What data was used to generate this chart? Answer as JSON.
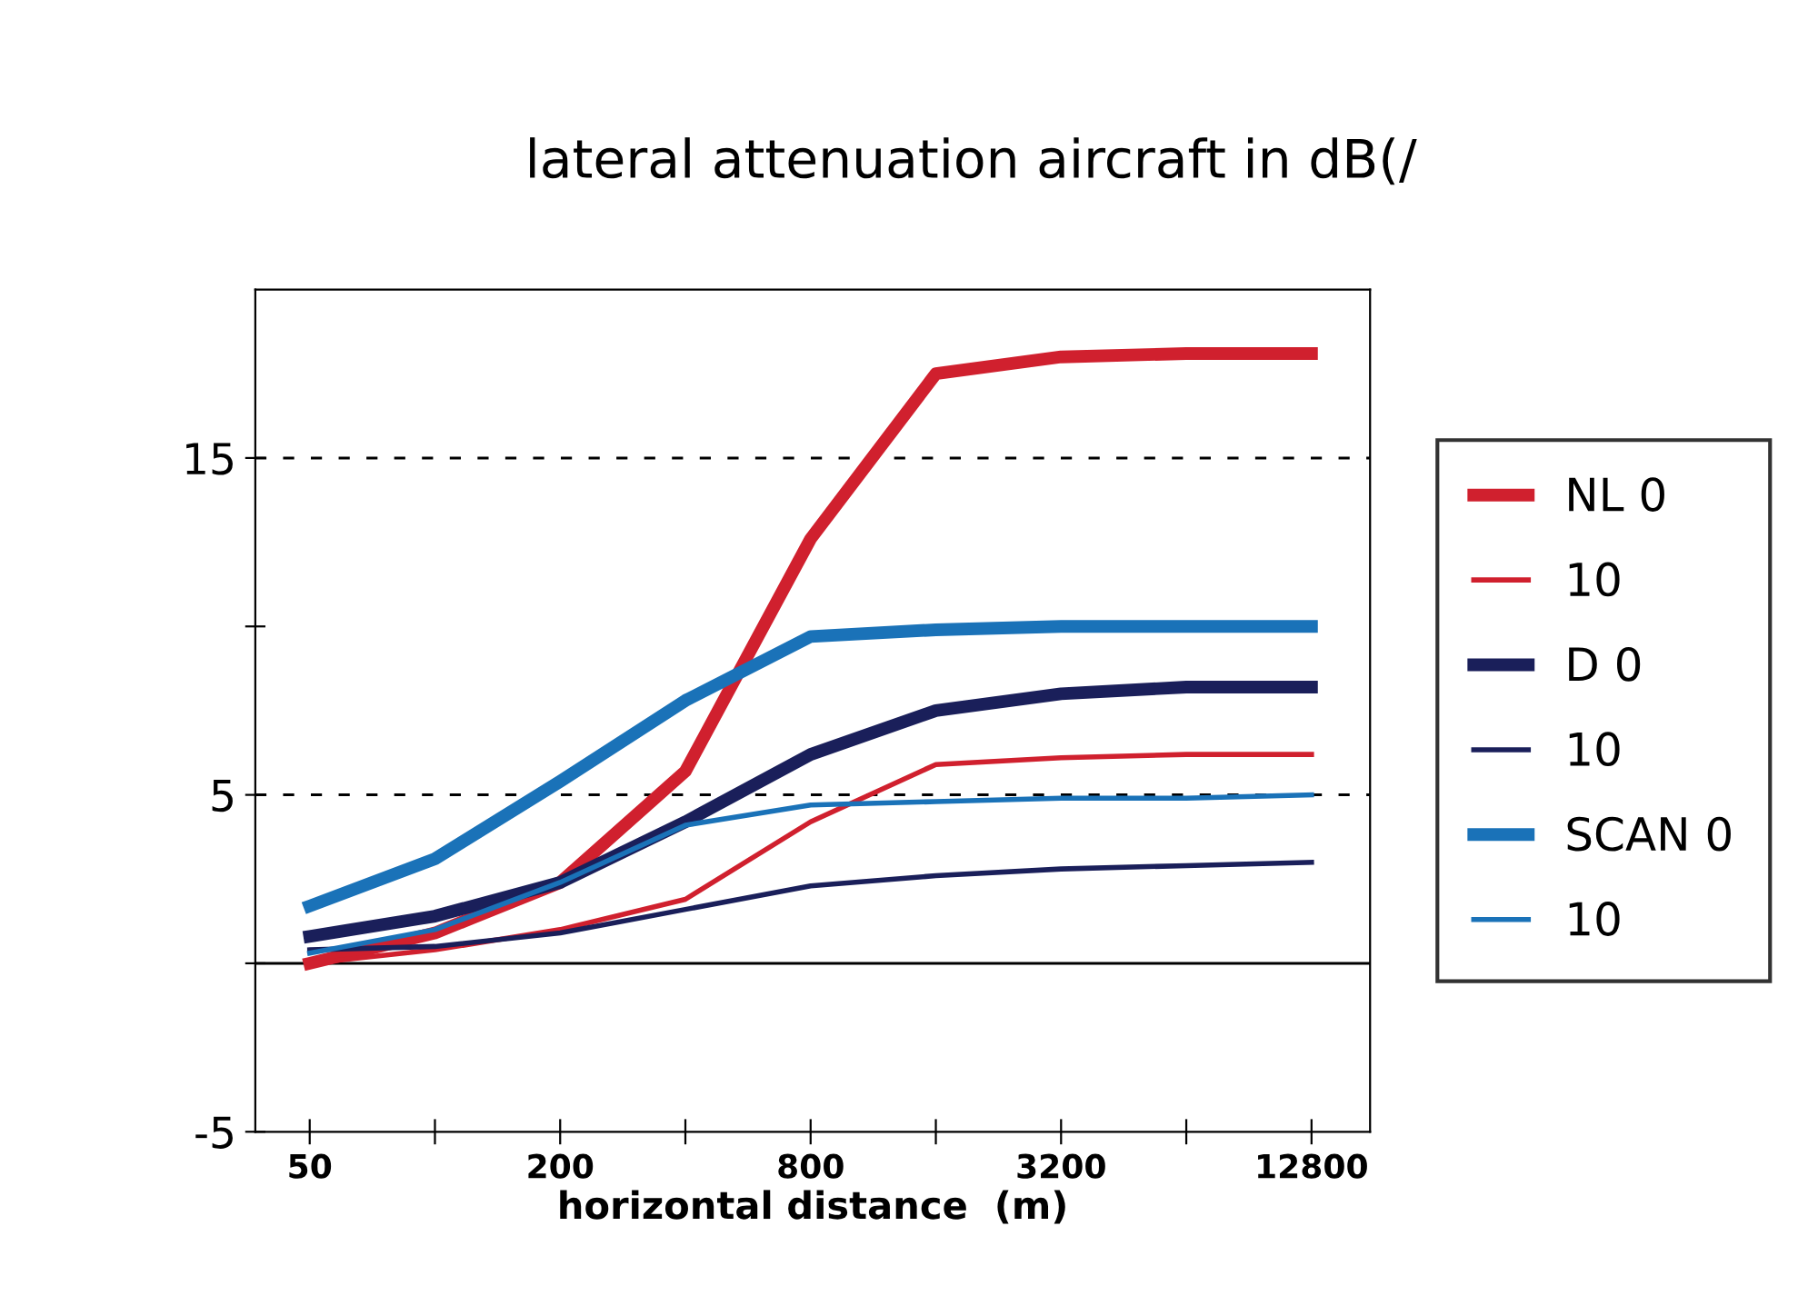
{
  "chart_data": {
    "type": "line",
    "title": "lateral attenuation aircraft in dB(/",
    "xlabel": "horizontal distance  (m)",
    "x": [
      50,
      100,
      200,
      400,
      800,
      1600,
      3200,
      6400,
      12800
    ],
    "series": [
      {
        "name": "NL 0",
        "color": "#d0202e",
        "values": [
          0,
          0.9,
          2.4,
          5.7,
          12.6,
          17.5,
          18,
          18.1,
          18.1
        ]
      },
      {
        "name": "10",
        "color": "#d0202e",
        "values": [
          0,
          0.4,
          1.0,
          1.9,
          4.2,
          5.9,
          6.1,
          6.2,
          6.2
        ]
      },
      {
        "name": "D 0",
        "color": "#1a1f5a",
        "values": [
          0.8,
          1.4,
          2.4,
          4.2,
          6.2,
          7.5,
          8.0,
          8.2,
          8.2
        ]
      },
      {
        "name": "10",
        "color": "#1a1f5a",
        "values": [
          0.4,
          0.5,
          0.9,
          1.6,
          2.3,
          2.6,
          2.8,
          2.9,
          3.0
        ]
      },
      {
        "name": "SCAN 0",
        "color": "#1a72b8",
        "values": [
          1.7,
          3.1,
          5.4,
          7.8,
          9.7,
          9.9,
          10,
          10,
          10
        ]
      },
      {
        "name": "10",
        "color": "#1a72b8",
        "values": [
          0.3,
          1.0,
          2.4,
          4.1,
          4.7,
          4.8,
          4.9,
          4.9,
          5.0
        ]
      }
    ],
    "log": "x",
    "xlim": [
      37,
      17700
    ],
    "ylim": [
      -5,
      20
    ],
    "xticks": [
      50,
      {
        "value": 100,
        "label": null
      },
      200,
      {
        "value": 400,
        "label": null
      },
      800,
      {
        "value": 1600,
        "label": null
      },
      3200,
      {
        "value": 6400,
        "label": null
      },
      12800
    ],
    "yticks": [
      -5,
      {
        "value": 0,
        "label": null
      },
      5,
      {
        "value": 10,
        "label": null
      },
      15
    ],
    "ref_lines": [
      {
        "axis": "y",
        "value": 15,
        "line_style": "dashed",
        "color": "#000000"
      },
      {
        "axis": "y",
        "value": 5,
        "line_style": "dashed",
        "color": "#000000"
      },
      {
        "axis": "y",
        "value": 0,
        "line_style": "solid",
        "color": "#000000"
      }
    ],
    "grid": false,
    "legend": "right",
    "marker": "none",
    "line_style": "solid"
  }
}
